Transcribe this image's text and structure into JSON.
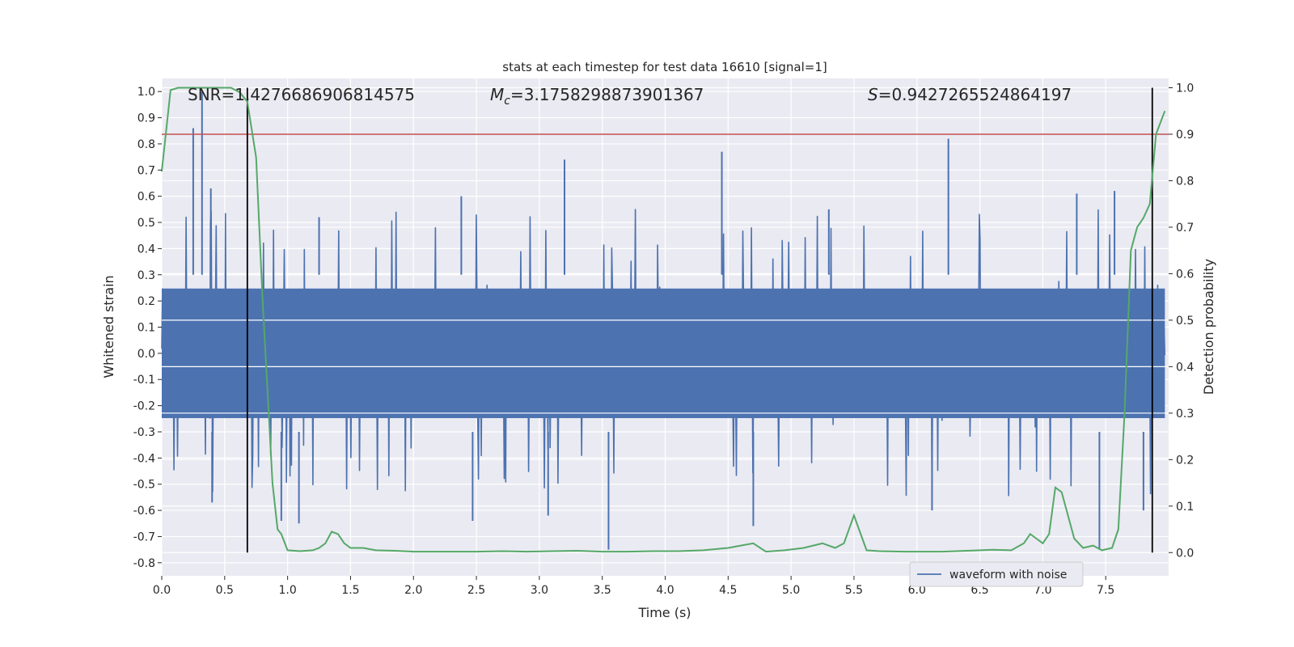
{
  "chart_data": {
    "type": "line",
    "title": "stats at each timestep for test data 16610 [signal=1]",
    "xlabel": "Time (s)",
    "ylabel": "Whitened strain",
    "y2label": "Detection probability",
    "xlim": [
      0.0,
      8.0
    ],
    "ylim": [
      -0.85,
      1.05
    ],
    "y2lim": [
      -0.05,
      1.02
    ],
    "xticks": [
      "0.0",
      "0.5",
      "1.0",
      "1.5",
      "2.0",
      "2.5",
      "3.0",
      "3.5",
      "4.0",
      "4.5",
      "5.0",
      "5.5",
      "6.0",
      "6.5",
      "7.0",
      "7.5"
    ],
    "yticks": [
      "1.0",
      "0.9",
      "0.8",
      "0.7",
      "0.6",
      "0.5",
      "0.4",
      "0.3",
      "0.2",
      "0.1",
      "0.0",
      "-0.1",
      "-0.2",
      "-0.3",
      "-0.4",
      "-0.5",
      "-0.6",
      "-0.7",
      "-0.8"
    ],
    "y2ticks": [
      "1.0",
      "0.9",
      "0.8",
      "0.7",
      "0.6",
      "0.5",
      "0.4",
      "0.3",
      "0.2",
      "0.1",
      "0.0"
    ],
    "grid": true,
    "legend_position": "lower-right",
    "annotations": {
      "snr": "SNR=1.4276686906814575",
      "mc_symbol": "M",
      "mc_sub": "c",
      "mc_value": "=3.1758298873901367",
      "s_symbol": "S",
      "s_value": "=0.9427265524864197"
    },
    "threshold": {
      "axis": "y2",
      "value": 0.9,
      "color": "#c44e52"
    },
    "event_lines": {
      "x": [
        0.68,
        7.87
      ],
      "y2_range": [
        0.0,
        1.0
      ],
      "color": "#000000"
    },
    "series": [
      {
        "name": "waveform with noise",
        "axis": "y",
        "color": "#4c72b0",
        "style": "dense noise",
        "envelope_typical": [
          -0.45,
          0.45
        ],
        "peaks": [
          {
            "x": 0.25,
            "y": 0.86
          },
          {
            "x": 0.32,
            "y": 1.0
          },
          {
            "x": 0.39,
            "y": 0.63
          },
          {
            "x": 1.25,
            "y": 0.52
          },
          {
            "x": 2.38,
            "y": 0.6
          },
          {
            "x": 3.2,
            "y": 0.74
          },
          {
            "x": 4.45,
            "y": 0.77
          },
          {
            "x": 5.3,
            "y": 0.55
          },
          {
            "x": 6.25,
            "y": 0.82
          },
          {
            "x": 7.27,
            "y": 0.61
          },
          {
            "x": 7.57,
            "y": 0.62
          }
        ],
        "troughs": [
          {
            "x": 0.4,
            "y": -0.57
          },
          {
            "x": 0.95,
            "y": -0.64
          },
          {
            "x": 1.09,
            "y": -0.65
          },
          {
            "x": 2.47,
            "y": -0.64
          },
          {
            "x": 3.07,
            "y": -0.62
          },
          {
            "x": 3.55,
            "y": -0.75
          },
          {
            "x": 4.7,
            "y": -0.66
          },
          {
            "x": 6.12,
            "y": -0.6
          },
          {
            "x": 7.45,
            "y": -0.75
          },
          {
            "x": 7.8,
            "y": -0.6
          }
        ]
      },
      {
        "name": "",
        "axis": "y2",
        "color": "#55a868",
        "x": [
          0.0,
          0.07,
          0.13,
          0.2,
          0.3,
          0.45,
          0.55,
          0.62,
          0.68,
          0.75,
          0.8,
          0.85,
          0.88,
          0.92,
          0.95,
          1.0,
          1.1,
          1.2,
          1.25,
          1.3,
          1.35,
          1.4,
          1.45,
          1.5,
          1.6,
          1.7,
          1.85,
          2.0,
          2.2,
          2.5,
          2.7,
          2.9,
          3.1,
          3.3,
          3.5,
          3.7,
          3.9,
          4.1,
          4.3,
          4.5,
          4.6,
          4.7,
          4.8,
          4.95,
          5.1,
          5.25,
          5.35,
          5.42,
          5.5,
          5.6,
          5.7,
          5.9,
          6.2,
          6.4,
          6.6,
          6.75,
          6.85,
          6.9,
          6.95,
          7.0,
          7.05,
          7.1,
          7.15,
          7.25,
          7.32,
          7.4,
          7.47,
          7.55,
          7.6,
          7.65,
          7.7,
          7.75,
          7.8,
          7.85,
          7.9,
          7.97
        ],
        "y": [
          0.82,
          0.995,
          1.0,
          1.0,
          1.0,
          1.0,
          1.0,
          0.99,
          0.97,
          0.85,
          0.55,
          0.3,
          0.15,
          0.05,
          0.04,
          0.005,
          0.003,
          0.005,
          0.01,
          0.02,
          0.045,
          0.04,
          0.02,
          0.01,
          0.01,
          0.005,
          0.004,
          0.002,
          0.002,
          0.002,
          0.003,
          0.002,
          0.003,
          0.004,
          0.002,
          0.002,
          0.003,
          0.003,
          0.005,
          0.01,
          0.015,
          0.02,
          0.002,
          0.005,
          0.01,
          0.02,
          0.01,
          0.02,
          0.08,
          0.005,
          0.003,
          0.002,
          0.002,
          0.004,
          0.006,
          0.005,
          0.02,
          0.04,
          0.03,
          0.02,
          0.04,
          0.14,
          0.13,
          0.03,
          0.01,
          0.015,
          0.005,
          0.01,
          0.05,
          0.3,
          0.65,
          0.7,
          0.72,
          0.75,
          0.9,
          0.95
        ]
      }
    ]
  }
}
